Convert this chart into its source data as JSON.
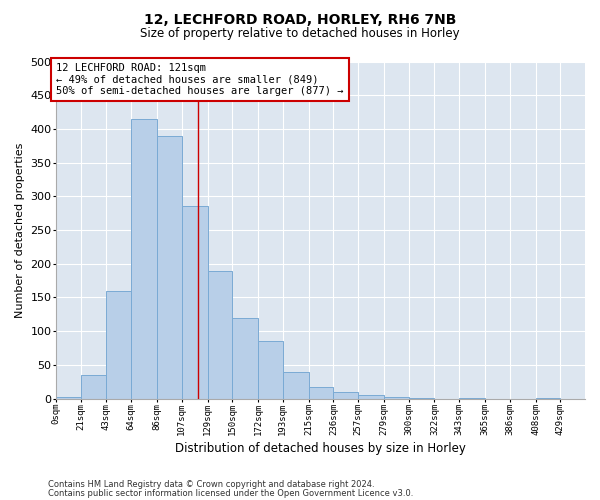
{
  "title": "12, LECHFORD ROAD, HORLEY, RH6 7NB",
  "subtitle": "Size of property relative to detached houses in Horley",
  "xlabel": "Distribution of detached houses by size in Horley",
  "ylabel": "Number of detached properties",
  "footer_line1": "Contains HM Land Registry data © Crown copyright and database right 2024.",
  "footer_line2": "Contains public sector information licensed under the Open Government Licence v3.0.",
  "bar_labels": [
    "0sqm",
    "21sqm",
    "43sqm",
    "64sqm",
    "86sqm",
    "107sqm",
    "129sqm",
    "150sqm",
    "172sqm",
    "193sqm",
    "215sqm",
    "236sqm",
    "257sqm",
    "279sqm",
    "300sqm",
    "322sqm",
    "343sqm",
    "365sqm",
    "386sqm",
    "408sqm",
    "429sqm"
  ],
  "bar_values": [
    2,
    35,
    160,
    415,
    390,
    285,
    190,
    120,
    85,
    40,
    18,
    10,
    5,
    2,
    1,
    0,
    1,
    0,
    0,
    1,
    0
  ],
  "bar_color": "#b8cfe8",
  "bar_edge_color": "#7aaad4",
  "bg_color": "#dde6f0",
  "grid_color": "#ffffff",
  "vline_color": "#cc0000",
  "annotation_box_color": "#cc0000",
  "ylim": [
    0,
    500
  ],
  "yticks": [
    0,
    50,
    100,
    150,
    200,
    250,
    300,
    350,
    400,
    450,
    500
  ],
  "bin_edges": [
    0,
    21,
    43,
    64,
    86,
    107,
    129,
    150,
    172,
    193,
    215,
    236,
    257,
    279,
    300,
    322,
    343,
    365,
    386,
    408,
    429,
    450
  ],
  "vline_x": 121
}
